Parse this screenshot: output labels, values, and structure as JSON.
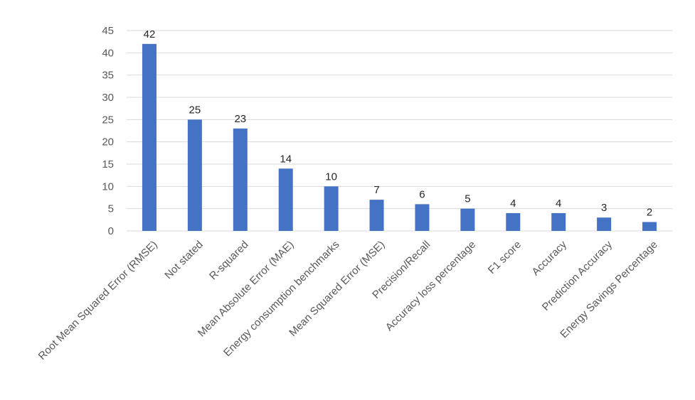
{
  "chart_data": {
    "type": "bar",
    "categories": [
      "Root Mean Squared Error (RMSE)",
      "Not stated",
      "R-squared",
      "Mean Absolute Error (MAE)",
      "Energy consumption benchmarks",
      "Mean Squared Error (MSE)",
      "Precision/Recall",
      "Accuracy loss percentage",
      "F1 score",
      "Accuracy",
      "Prediction Accuracy",
      "Energy Savings Percentage"
    ],
    "values": [
      42,
      25,
      23,
      14,
      10,
      7,
      6,
      5,
      4,
      4,
      3,
      2
    ],
    "color": "#4472c4",
    "ylim": [
      0,
      45
    ],
    "yticks": [
      0,
      5,
      10,
      15,
      20,
      25,
      30,
      35,
      40,
      45
    ],
    "grid": true
  }
}
